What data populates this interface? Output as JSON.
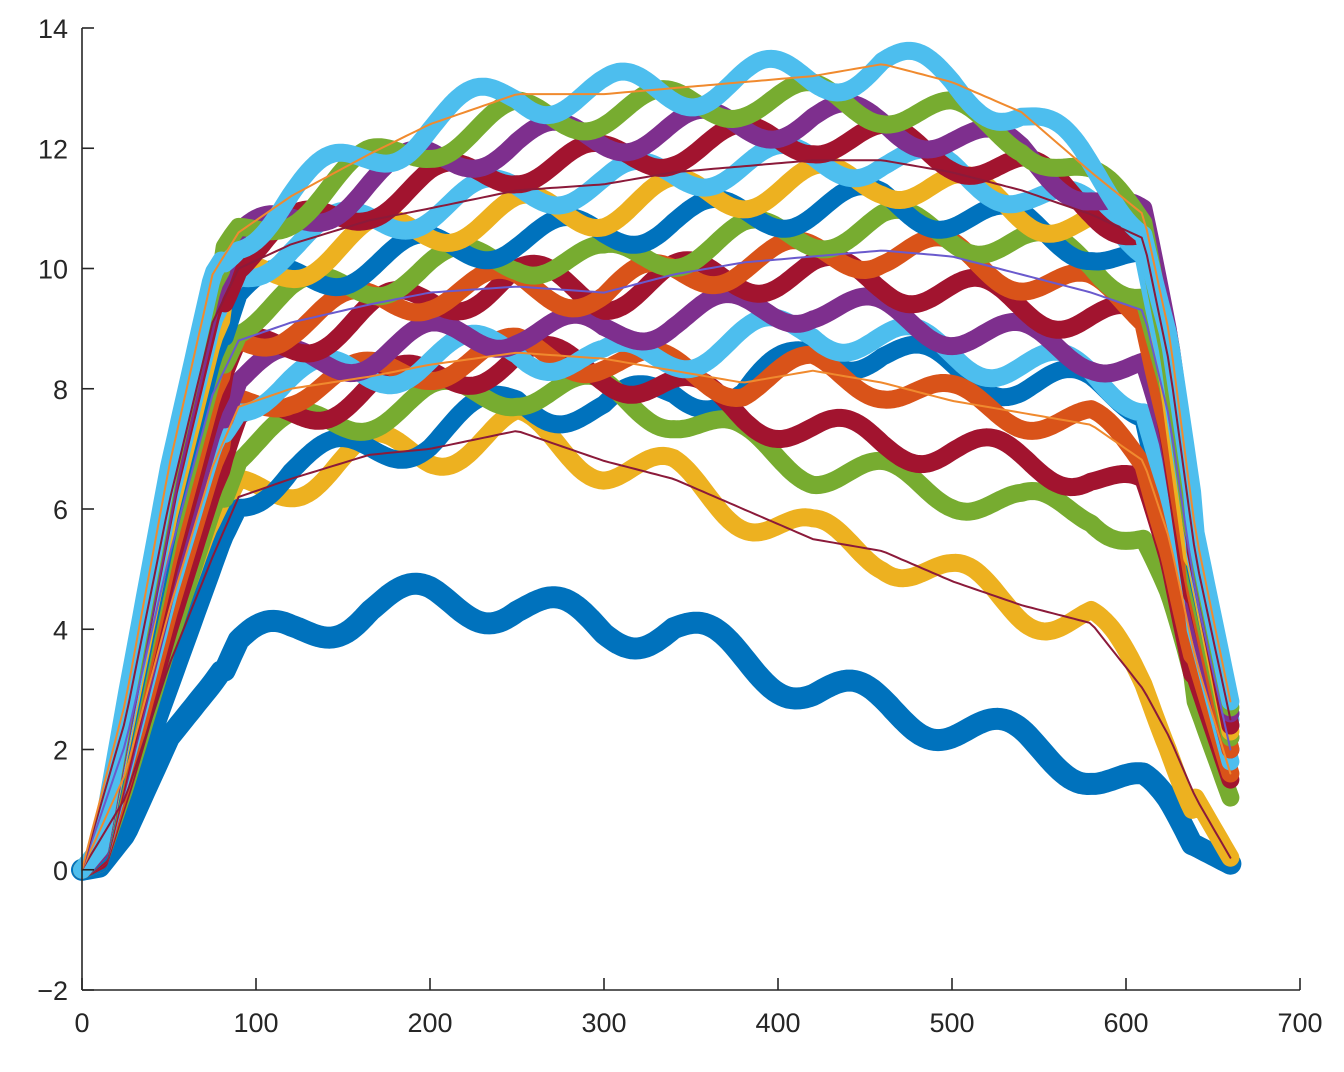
{
  "chart_data": {
    "type": "line",
    "title": "",
    "xlabel": "",
    "ylabel": "",
    "xlim": [
      0,
      700
    ],
    "ylim": [
      -2,
      14
    ],
    "xticks": [
      "0",
      "100",
      "200",
      "300",
      "400",
      "500",
      "600",
      "700"
    ],
    "yticks": [
      "14",
      "12",
      "10",
      "8",
      "6",
      "4",
      "2",
      "0",
      "−2"
    ],
    "grid": false,
    "legend": "none",
    "colors": [
      "#0072BD",
      "#D95319",
      "#EDB120",
      "#7E2F8E",
      "#77AC30",
      "#4DBEEE",
      "#A2142F"
    ],
    "fit_line_colors": [
      "#8B1A3A",
      "#F08A2E",
      "#6A5ACD"
    ],
    "series": [
      {
        "color": "#0072BD",
        "wobble": 0.32,
        "x": [
          0,
          10,
          25,
          50,
          75,
          90,
          120,
          165,
          200,
          250,
          300,
          340,
          380,
          420,
          460,
          500,
          540,
          580,
          610,
          625,
          640,
          660
        ],
        "y": [
          0,
          0.05,
          0.6,
          2.2,
          3.1,
          3.7,
          3.9,
          4.4,
          4.45,
          4.4,
          4.0,
          4.0,
          3.5,
          3.0,
          2.7,
          2.4,
          2.1,
          1.7,
          1.3,
          0.9,
          0.4,
          0.1
        ]
      },
      {
        "color": "#EDB120",
        "wobble": 0.35,
        "x": [
          0,
          10,
          25,
          50,
          75,
          90,
          120,
          165,
          200,
          250,
          300,
          340,
          380,
          420,
          460,
          500,
          540,
          580,
          610,
          625,
          640,
          660
        ],
        "y": [
          0,
          0.1,
          1.2,
          3.4,
          5.2,
          6.2,
          6.5,
          6.9,
          7.0,
          7.3,
          6.8,
          6.5,
          6.0,
          5.5,
          5.3,
          4.8,
          4.4,
          4.1,
          3.0,
          2.2,
          1.2,
          0.2
        ]
      },
      {
        "color": "#0072BD",
        "wobble": 0.3,
        "x": [
          0,
          10,
          25,
          50,
          75,
          90,
          120,
          165,
          200,
          250,
          300,
          340,
          380,
          420,
          460,
          500,
          540,
          580,
          610,
          625,
          640,
          660
        ],
        "y": [
          0,
          0.1,
          1.0,
          3.0,
          5.0,
          6.2,
          6.7,
          7.0,
          7.2,
          7.8,
          7.6,
          8.0,
          7.9,
          8.6,
          8.6,
          8.3,
          8.1,
          8.0,
          7.8,
          5.8,
          3.8,
          2.6
        ]
      },
      {
        "color": "#77AC30",
        "wobble": 0.3,
        "x": [
          0,
          10,
          25,
          50,
          75,
          90,
          120,
          165,
          200,
          250,
          300,
          340,
          380,
          420,
          460,
          500,
          540,
          580,
          610,
          625,
          640,
          660
        ],
        "y": [
          0,
          0.15,
          1.4,
          3.8,
          6.0,
          7.0,
          7.3,
          7.6,
          7.8,
          8.0,
          7.9,
          7.6,
          7.1,
          6.7,
          6.5,
          6.3,
          6.0,
          6.0,
          5.5,
          4.3,
          2.8,
          1.2
        ]
      },
      {
        "color": "#A2142F",
        "wobble": 0.3,
        "x": [
          0,
          10,
          25,
          50,
          75,
          90,
          120,
          165,
          200,
          250,
          300,
          340,
          380,
          420,
          460,
          500,
          540,
          580,
          610,
          625,
          640,
          660
        ],
        "y": [
          0,
          0.15,
          1.5,
          4.0,
          6.3,
          7.3,
          7.6,
          8.0,
          8.2,
          8.5,
          8.3,
          8.0,
          7.6,
          7.3,
          7.1,
          7.0,
          6.8,
          6.6,
          6.2,
          5.0,
          3.2,
          1.5
        ]
      },
      {
        "color": "#D95319",
        "wobble": 0.28,
        "x": [
          0,
          10,
          25,
          50,
          75,
          90,
          120,
          165,
          200,
          250,
          300,
          340,
          380,
          420,
          460,
          500,
          540,
          580,
          610,
          625,
          640,
          660
        ],
        "y": [
          0,
          0.2,
          1.6,
          4.3,
          6.7,
          7.7,
          8.0,
          8.2,
          8.4,
          8.6,
          8.5,
          8.3,
          8.1,
          8.3,
          8.1,
          7.8,
          7.6,
          7.4,
          6.8,
          5.5,
          3.5,
          1.6
        ]
      },
      {
        "color": "#4DBEEE",
        "wobble": 0.32,
        "x": [
          0,
          10,
          25,
          50,
          75,
          90,
          120,
          165,
          200,
          250,
          300,
          340,
          380,
          420,
          460,
          500,
          540,
          580,
          610,
          625,
          640,
          660
        ],
        "y": [
          0,
          0.2,
          1.8,
          4.6,
          7.0,
          7.9,
          8.1,
          8.3,
          8.5,
          8.7,
          8.4,
          8.6,
          8.8,
          9.0,
          8.8,
          8.6,
          8.4,
          8.2,
          7.9,
          6.2,
          4.0,
          1.8
        ]
      },
      {
        "color": "#7E2F8E",
        "wobble": 0.3,
        "x": [
          0,
          10,
          25,
          50,
          75,
          90,
          120,
          165,
          200,
          250,
          300,
          340,
          380,
          420,
          460,
          500,
          540,
          580,
          610,
          625,
          640,
          660
        ],
        "y": [
          0,
          0.2,
          1.9,
          4.8,
          7.3,
          8.2,
          8.4,
          8.6,
          8.8,
          9.0,
          8.9,
          9.2,
          9.3,
          9.4,
          9.2,
          9.0,
          8.8,
          8.6,
          8.3,
          6.7,
          4.2,
          2.0
        ]
      },
      {
        "color": "#A2142F",
        "wobble": 0.32,
        "x": [
          0,
          10,
          25,
          50,
          75,
          90,
          120,
          165,
          200,
          250,
          300,
          340,
          380,
          420,
          460,
          500,
          540,
          580,
          610,
          625,
          640,
          660
        ],
        "y": [
          0,
          0.2,
          2.0,
          5.0,
          7.6,
          8.5,
          8.8,
          9.2,
          9.5,
          9.8,
          9.6,
          9.8,
          9.9,
          9.9,
          9.8,
          9.6,
          9.4,
          9.2,
          9.0,
          7.2,
          4.5,
          2.2
        ]
      },
      {
        "color": "#D95319",
        "wobble": 0.3,
        "x": [
          0,
          10,
          25,
          50,
          75,
          90,
          120,
          165,
          200,
          250,
          300,
          340,
          380,
          420,
          460,
          500,
          540,
          580,
          610,
          625,
          640,
          660
        ],
        "y": [
          0,
          0.25,
          2.1,
          5.2,
          7.9,
          8.8,
          9.1,
          9.4,
          9.6,
          9.7,
          9.6,
          9.9,
          10.1,
          10.2,
          10.3,
          10.2,
          9.9,
          9.6,
          9.3,
          7.5,
          4.6,
          2.0
        ]
      },
      {
        "color": "#77AC30",
        "wobble": 0.3,
        "x": [
          0,
          10,
          25,
          50,
          75,
          90,
          120,
          165,
          200,
          250,
          300,
          340,
          380,
          420,
          460,
          500,
          540,
          580,
          610,
          625,
          640,
          660
        ],
        "y": [
          0,
          0.25,
          2.2,
          5.5,
          8.2,
          9.2,
          9.5,
          9.8,
          10.0,
          10.2,
          10.1,
          10.3,
          10.5,
          10.6,
          10.7,
          10.6,
          10.4,
          10.1,
          9.7,
          7.8,
          4.8,
          2.2
        ]
      },
      {
        "color": "#0072BD",
        "wobble": 0.3,
        "x": [
          0,
          10,
          25,
          50,
          75,
          90,
          120,
          165,
          200,
          250,
          300,
          340,
          380,
          420,
          460,
          500,
          540,
          580,
          610,
          625,
          640,
          660
        ],
        "y": [
          0,
          0.25,
          2.3,
          5.7,
          8.5,
          9.5,
          9.8,
          10.1,
          10.3,
          10.5,
          10.6,
          10.8,
          10.9,
          11.0,
          11.1,
          10.9,
          10.7,
          10.4,
          10.0,
          8.0,
          5.0,
          2.4
        ]
      },
      {
        "color": "#EDB120",
        "wobble": 0.32,
        "x": [
          0,
          10,
          25,
          50,
          75,
          90,
          120,
          165,
          200,
          250,
          300,
          340,
          380,
          420,
          460,
          500,
          540,
          580,
          610,
          625,
          640,
          660
        ],
        "y": [
          0,
          0.3,
          2.4,
          5.9,
          8.8,
          9.8,
          10.1,
          10.5,
          10.7,
          10.9,
          11.0,
          11.2,
          11.3,
          11.4,
          11.5,
          11.3,
          11.0,
          10.7,
          10.3,
          8.2,
          5.1,
          2.3
        ]
      },
      {
        "color": "#4DBEEE",
        "wobble": 0.3,
        "x": [
          0,
          10,
          25,
          50,
          75,
          90,
          120,
          165,
          200,
          250,
          300,
          340,
          380,
          420,
          460,
          500,
          540,
          580,
          610,
          625,
          640,
          660
        ],
        "y": [
          0,
          0.3,
          2.5,
          6.1,
          9.1,
          10.0,
          10.4,
          10.8,
          11.0,
          11.3,
          11.4,
          11.6,
          11.7,
          11.8,
          11.8,
          11.6,
          11.3,
          10.9,
          10.5,
          8.4,
          5.2,
          2.5
        ]
      },
      {
        "color": "#A2142F",
        "wobble": 0.3,
        "x": [
          0,
          10,
          25,
          50,
          75,
          90,
          120,
          165,
          200,
          250,
          300,
          340,
          380,
          420,
          460,
          500,
          540,
          580,
          610,
          625,
          640,
          660
        ],
        "y": [
          0,
          0.3,
          2.6,
          6.3,
          9.3,
          10.2,
          10.6,
          11.1,
          11.4,
          11.7,
          11.8,
          12.0,
          12.1,
          12.2,
          12.1,
          11.9,
          11.6,
          11.1,
          10.6,
          8.6,
          5.3,
          2.4
        ]
      },
      {
        "color": "#7E2F8E",
        "wobble": 0.3,
        "x": [
          0,
          10,
          25,
          50,
          75,
          90,
          120,
          165,
          200,
          250,
          300,
          340,
          380,
          420,
          460,
          500,
          540,
          580,
          610,
          625,
          640,
          660
        ],
        "y": [
          0,
          0.3,
          2.6,
          6.4,
          9.5,
          10.4,
          10.8,
          11.4,
          11.8,
          12.1,
          12.2,
          12.3,
          12.4,
          12.5,
          12.4,
          12.2,
          11.9,
          11.3,
          10.7,
          8.7,
          5.4,
          2.6
        ]
      },
      {
        "color": "#77AC30",
        "wobble": 0.3,
        "x": [
          0,
          10,
          25,
          50,
          75,
          90,
          120,
          165,
          200,
          250,
          300,
          340,
          380,
          420,
          460,
          500,
          540,
          580,
          610,
          625,
          640,
          660
        ],
        "y": [
          0,
          0.35,
          2.7,
          6.6,
          9.7,
          10.5,
          11.0,
          11.7,
          12.1,
          12.5,
          12.6,
          12.7,
          12.8,
          12.8,
          12.7,
          12.5,
          12.2,
          11.4,
          10.8,
          8.8,
          5.5,
          2.7
        ]
      },
      {
        "color": "#4DBEEE",
        "wobble": 0.35,
        "x": [
          0,
          10,
          25,
          50,
          75,
          90,
          120,
          165,
          200,
          250,
          300,
          340,
          380,
          420,
          460,
          500,
          540,
          580,
          610,
          625,
          640,
          660
        ],
        "y": [
          0,
          0.35,
          2.8,
          6.7,
          9.9,
          10.6,
          11.2,
          11.9,
          12.4,
          12.9,
          12.9,
          13.0,
          13.1,
          13.2,
          13.4,
          13.1,
          12.6,
          11.6,
          10.9,
          8.9,
          5.6,
          2.8
        ]
      }
    ],
    "fit_lines": [
      {
        "x": [
          0,
          25,
          50,
          75,
          90,
          120,
          165,
          200,
          250,
          300,
          340,
          380,
          420,
          460,
          500,
          540,
          580,
          610,
          625,
          640,
          660
        ],
        "y": [
          0,
          1.2,
          3.4,
          5.2,
          6.2,
          6.5,
          6.9,
          7.0,
          7.3,
          6.8,
          6.5,
          6.0,
          5.5,
          5.3,
          4.8,
          4.4,
          4.1,
          3.0,
          2.2,
          1.2,
          0.2
        ]
      },
      {
        "x": [
          0,
          25,
          50,
          75,
          90,
          120,
          165,
          200,
          250,
          300,
          340,
          380,
          420,
          460,
          500,
          540,
          580,
          610,
          625,
          640,
          660
        ],
        "y": [
          0,
          1.6,
          4.3,
          6.7,
          7.7,
          8.0,
          8.2,
          8.4,
          8.6,
          8.5,
          8.3,
          8.1,
          8.3,
          8.1,
          7.8,
          7.6,
          7.4,
          6.8,
          5.5,
          3.5,
          1.6
        ]
      },
      {
        "x": [
          0,
          25,
          50,
          75,
          90,
          120,
          165,
          200,
          250,
          300,
          340,
          380,
          420,
          460,
          500,
          540,
          580,
          610,
          625,
          640,
          660
        ],
        "y": [
          0,
          2.1,
          5.2,
          7.9,
          8.8,
          9.1,
          9.4,
          9.6,
          9.7,
          9.6,
          9.9,
          10.1,
          10.2,
          10.3,
          10.2,
          9.9,
          9.6,
          9.3,
          7.5,
          4.6,
          2.0
        ]
      },
      {
        "x": [
          0,
          25,
          50,
          75,
          90,
          120,
          165,
          200,
          250,
          300,
          340,
          380,
          420,
          460,
          500,
          540,
          580,
          610,
          625,
          640,
          660
        ],
        "y": [
          0,
          2.5,
          6.1,
          9.1,
          10.0,
          10.4,
          10.8,
          11.0,
          11.3,
          11.4,
          11.6,
          11.7,
          11.8,
          11.8,
          11.6,
          11.3,
          10.9,
          10.5,
          8.4,
          5.2,
          2.5
        ]
      },
      {
        "x": [
          0,
          25,
          50,
          75,
          90,
          120,
          165,
          200,
          250,
          300,
          340,
          380,
          420,
          460,
          500,
          540,
          580,
          610,
          625,
          640,
          660
        ],
        "y": [
          0,
          2.8,
          6.7,
          9.9,
          10.6,
          11.2,
          11.9,
          12.4,
          12.9,
          12.9,
          13.0,
          13.1,
          13.2,
          13.4,
          13.1,
          12.6,
          11.6,
          10.9,
          8.9,
          5.6,
          2.8
        ]
      }
    ]
  }
}
